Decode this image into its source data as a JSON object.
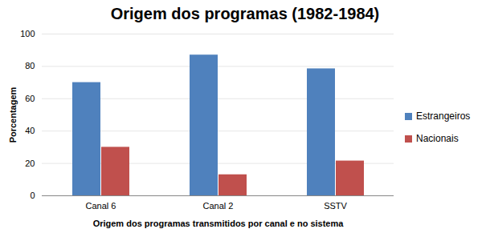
{
  "chart_data": {
    "type": "bar",
    "title": "Origem dos programas (1982-1984)",
    "x_label": "Origem dos programas transmitidos por canal e no sistema",
    "y_label": "Porcentagem",
    "categories": [
      "Canal 6",
      "Canal 2",
      "SSTV"
    ],
    "series": [
      {
        "name": "Estrangeiros",
        "color": "#4f81bd",
        "values": [
          70,
          87,
          78.5
        ]
      },
      {
        "name": "Nacionais",
        "color": "#c0504d",
        "values": [
          30,
          13,
          21.5
        ]
      }
    ],
    "ylim": [
      0,
      100
    ],
    "yticks": [
      0,
      20,
      40,
      60,
      80,
      100
    ],
    "grid": true,
    "legend": "right"
  }
}
